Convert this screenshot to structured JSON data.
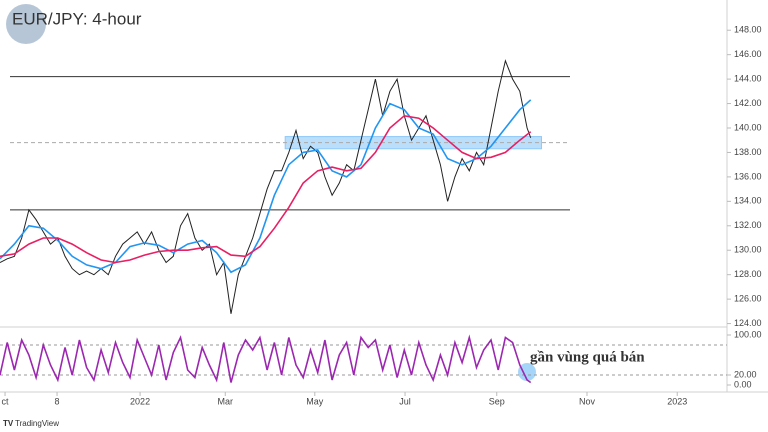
{
  "chart_data": {
    "type": "line",
    "title": "EUR/JPY: 4-hour",
    "annotation": "gần vùng quá bán",
    "footer": "TradingView",
    "xlim": [
      0,
      100
    ],
    "xticks": [
      {
        "value": 0.7,
        "label": "ct"
      },
      {
        "value": 7.9,
        "label": "8"
      },
      {
        "value": 19.4,
        "label": "2022"
      },
      {
        "value": 31.2,
        "label": "Mar"
      },
      {
        "value": 43.6,
        "label": "May"
      },
      {
        "value": 56.1,
        "label": "Jul"
      },
      {
        "value": 68.8,
        "label": "Sep"
      },
      {
        "value": 81.3,
        "label": "Nov"
      },
      {
        "value": 93.8,
        "label": "2023"
      }
    ],
    "ylim": [
      123.3,
      148.8
    ],
    "yticks": [
      {
        "value": 124,
        "label": "124.00"
      },
      {
        "value": 126,
        "label": "126.00"
      },
      {
        "value": 128,
        "label": "128.00"
      },
      {
        "value": 130,
        "label": "130.00"
      },
      {
        "value": 132,
        "label": "132.00"
      },
      {
        "value": 134,
        "label": "134.00"
      },
      {
        "value": 136,
        "label": "136.00"
      },
      {
        "value": 138,
        "label": "138.00"
      },
      {
        "value": 140,
        "label": "140.00"
      },
      {
        "value": 142,
        "label": "142.00"
      },
      {
        "value": 144,
        "label": "144.00"
      },
      {
        "value": 146,
        "label": "146.00"
      },
      {
        "value": 148,
        "label": "148.00"
      }
    ],
    "levels": [
      {
        "value": 144.2,
        "style": "solid"
      },
      {
        "value": 138.8,
        "style": "dashed"
      },
      {
        "value": 133.3,
        "style": "solid"
      }
    ],
    "zone": {
      "x": [
        39.5,
        75
      ],
      "y": [
        138.3,
        139.3
      ],
      "color": "#bbdefb"
    },
    "series": [
      {
        "color": "#222222",
        "x": [
          0,
          1,
          2,
          3,
          4,
          5,
          6,
          7,
          8,
          9,
          10,
          11,
          12,
          13,
          14,
          15,
          16,
          17,
          18,
          19,
          20,
          21,
          22,
          23,
          24,
          25,
          26,
          27,
          28,
          29,
          30,
          31,
          32,
          33,
          34,
          35,
          36,
          37,
          38,
          39,
          40,
          41,
          42,
          43,
          44,
          45,
          46,
          47,
          48,
          49,
          50,
          51,
          52,
          53,
          54,
          55,
          56,
          57,
          58,
          59,
          60,
          61,
          62,
          63,
          64,
          65,
          66,
          67,
          68,
          69,
          70,
          71,
          72,
          73,
          73.5
        ],
        "values": [
          129,
          129.3,
          129.5,
          131,
          133.3,
          132.5,
          131.5,
          130.5,
          131,
          129.5,
          128.5,
          128,
          128.3,
          128,
          128.5,
          128,
          129.5,
          130.5,
          131,
          131.5,
          130.5,
          131.5,
          130,
          129,
          129.5,
          132,
          133,
          131,
          130,
          130.5,
          128,
          129,
          124.8,
          128,
          129.5,
          131,
          133,
          135,
          136.5,
          136.5,
          138,
          139.8,
          137.5,
          138.5,
          138,
          136,
          134.5,
          135.5,
          137,
          136.5,
          139,
          141.5,
          144,
          141,
          143,
          144,
          141,
          139,
          140,
          141,
          139,
          137,
          134,
          136,
          137.5,
          136.5,
          138,
          137,
          140,
          143,
          145.5,
          144,
          143,
          140,
          139.2
        ]
      },
      {
        "color": "#2196f3",
        "x": [
          0,
          2,
          4,
          6,
          8,
          10,
          12,
          14,
          16,
          18,
          20,
          22,
          24,
          26,
          28,
          30,
          32,
          34,
          36,
          38,
          40,
          42,
          44,
          46,
          48,
          50,
          52,
          54,
          56,
          58,
          60,
          62,
          64,
          66,
          68,
          70,
          72,
          73.5
        ],
        "values": [
          129.3,
          130.5,
          132,
          131.8,
          130.8,
          129.5,
          128.8,
          128.5,
          129,
          130.3,
          130.6,
          130.4,
          129.8,
          130.5,
          130.8,
          129.8,
          128.2,
          128.8,
          131,
          134.5,
          137,
          138,
          138.2,
          136.5,
          136,
          137,
          140,
          142,
          141.5,
          140,
          139.5,
          137.5,
          137,
          137.5,
          138.5,
          140,
          141.5,
          142.3
        ]
      },
      {
        "color": "#e91e63",
        "x": [
          0,
          2,
          4,
          6,
          8,
          10,
          12,
          14,
          16,
          18,
          20,
          22,
          24,
          26,
          28,
          30,
          32,
          34,
          36,
          38,
          40,
          42,
          44,
          46,
          48,
          50,
          52,
          54,
          56,
          58,
          60,
          62,
          64,
          66,
          68,
          70,
          72,
          73.5
        ],
        "values": [
          129.5,
          129.7,
          130.5,
          131,
          131,
          130.5,
          129.8,
          129.2,
          129,
          129.2,
          129.6,
          129.9,
          130,
          130,
          130.2,
          130.3,
          129.6,
          129.5,
          130.3,
          131.8,
          133.5,
          135.5,
          136.5,
          136.8,
          136.5,
          136.7,
          138,
          140,
          141,
          140.8,
          140,
          139,
          138,
          137.5,
          137.6,
          138,
          139,
          139.7
        ]
      },
      {
        "color": "#9c27b0",
        "axis": "osc",
        "x": [
          0,
          1,
          2,
          3,
          4,
          5,
          6,
          7,
          8,
          9,
          10,
          11,
          12,
          13,
          14,
          15,
          16,
          17,
          18,
          19,
          20,
          21,
          22,
          23,
          24,
          25,
          26,
          27,
          28,
          29,
          30,
          31,
          32,
          33,
          34,
          35,
          36,
          37,
          38,
          39,
          40,
          41,
          42,
          43,
          44,
          45,
          46,
          47,
          48,
          49,
          50,
          51,
          52,
          53,
          54,
          55,
          56,
          57,
          58,
          59,
          60,
          61,
          62,
          63,
          64,
          65,
          66,
          67,
          68,
          69,
          70,
          71,
          72,
          73,
          73.5
        ],
        "values": [
          20,
          85,
          30,
          90,
          60,
          15,
          80,
          40,
          10,
          75,
          20,
          90,
          35,
          10,
          70,
          25,
          85,
          45,
          15,
          90,
          55,
          20,
          80,
          10,
          65,
          95,
          30,
          15,
          75,
          40,
          10,
          85,
          5,
          60,
          90,
          70,
          95,
          30,
          85,
          20,
          95,
          40,
          15,
          70,
          25,
          90,
          10,
          60,
          85,
          20,
          95,
          75,
          90,
          30,
          80,
          15,
          70,
          20,
          85,
          40,
          10,
          60,
          20,
          85,
          45,
          95,
          35,
          70,
          90,
          30,
          95,
          85,
          40,
          10,
          5
        ]
      }
    ],
    "osc_lim": [
      0,
      100
    ],
    "osc_ticks": [
      {
        "value": 100,
        "label": "100.00"
      },
      {
        "value": 20,
        "label": "20.00"
      },
      {
        "value": 0,
        "label": "0.00"
      }
    ],
    "osc_levels": [
      80,
      20
    ]
  }
}
